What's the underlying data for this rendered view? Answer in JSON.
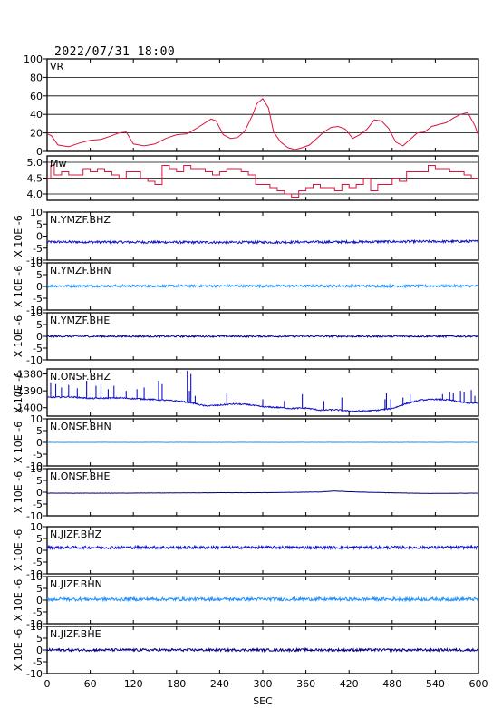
{
  "header": {
    "title": "2022/07/31 18:00"
  },
  "xaxis": {
    "label": "SEC",
    "ticks": [
      0,
      60,
      120,
      180,
      240,
      300,
      360,
      420,
      480,
      540,
      600
    ],
    "range": [
      0,
      600
    ]
  },
  "colors": {
    "vr_mw": "#dc143c",
    "vertical": "#1010c8",
    "north": "#1e90ff",
    "east": "#000080",
    "frame": "#000000"
  },
  "chart_data": [
    {
      "type": "line",
      "panel": "vr",
      "title": "VR",
      "ylim": [
        0,
        100
      ],
      "yticks": [
        0,
        20,
        40,
        60,
        80,
        100
      ],
      "grid": true,
      "series": [
        {
          "x": [
            0,
            6,
            15,
            30,
            45,
            60,
            75,
            90,
            100,
            110,
            120,
            135,
            150,
            165,
            180,
            195,
            210,
            220,
            228,
            235,
            245,
            255,
            265,
            275,
            285,
            292,
            300,
            308,
            315,
            325,
            335,
            345,
            355,
            365,
            375,
            385,
            395,
            405,
            415,
            425,
            435,
            445,
            455,
            465,
            475,
            485,
            495,
            505,
            515,
            525,
            535,
            545,
            555,
            565,
            575,
            585,
            595,
            600
          ],
          "values": [
            19,
            17,
            7,
            5,
            9,
            12,
            13,
            17,
            20,
            21,
            8,
            6,
            8,
            14,
            18,
            19,
            26,
            31,
            35,
            33,
            18,
            14,
            15,
            22,
            38,
            52,
            57,
            47,
            21,
            10,
            4,
            2,
            4,
            7,
            14,
            21,
            26,
            27,
            24,
            14,
            18,
            24,
            34,
            33,
            25,
            10,
            6,
            13,
            20,
            21,
            27,
            29,
            31,
            36,
            40,
            42,
            28,
            17
          ]
        }
      ]
    },
    {
      "type": "line",
      "panel": "mw",
      "title": "Mw",
      "ylim": [
        3.8,
        5.2
      ],
      "yticks": [
        4.0,
        4.5,
        5.0
      ],
      "ytick_labels": [
        "4.0",
        "4.5",
        "5.0"
      ],
      "grid": true,
      "series": [
        {
          "x": [
            0,
            5,
            10,
            20,
            30,
            40,
            50,
            60,
            70,
            80,
            90,
            100,
            110,
            120,
            130,
            140,
            150,
            160,
            170,
            180,
            190,
            200,
            210,
            220,
            230,
            240,
            250,
            260,
            270,
            280,
            290,
            300,
            310,
            320,
            330,
            340,
            350,
            360,
            370,
            380,
            390,
            400,
            410,
            420,
            430,
            440,
            450,
            460,
            470,
            480,
            490,
            500,
            510,
            520,
            530,
            540,
            550,
            560,
            570,
            580,
            590,
            600
          ],
          "values": [
            4.5,
            4.9,
            4.6,
            4.7,
            4.6,
            4.6,
            4.8,
            4.7,
            4.8,
            4.7,
            4.6,
            4.5,
            4.7,
            4.7,
            4.5,
            4.4,
            4.3,
            4.9,
            4.8,
            4.7,
            4.9,
            4.8,
            4.8,
            4.7,
            4.6,
            4.7,
            4.8,
            4.8,
            4.7,
            4.6,
            4.3,
            4.3,
            4.2,
            4.1,
            4.0,
            3.9,
            4.1,
            4.2,
            4.3,
            4.2,
            4.2,
            4.1,
            4.3,
            4.2,
            4.3,
            4.5,
            4.1,
            4.3,
            4.3,
            4.5,
            4.4,
            4.7,
            4.7,
            4.7,
            4.9,
            4.8,
            4.8,
            4.7,
            4.7,
            4.6,
            4.5,
            4.5
          ]
        }
      ]
    },
    {
      "type": "line",
      "panel": "wave",
      "title": "N.YMZF.BHZ",
      "ylim": [
        -10,
        10
      ],
      "yticks": [
        -10,
        -5,
        0,
        5,
        10
      ],
      "ylabel": "X 10E -6",
      "component": "vertical",
      "series": [
        {
          "x": [
            0,
            120,
            240,
            360,
            480,
            600
          ],
          "values": [
            -2.4,
            -2.5,
            -2.6,
            -2.5,
            -2.3,
            -2.2
          ],
          "noise": 0.5
        }
      ]
    },
    {
      "type": "line",
      "panel": "wave",
      "title": "N.YMZF.BHN",
      "ylim": [
        -10,
        10
      ],
      "yticks": [
        -10,
        -5,
        0,
        5,
        10
      ],
      "ylabel": "X 10E -6",
      "component": "north",
      "series": [
        {
          "x": [
            0,
            600
          ],
          "values": [
            0.2,
            0.2
          ],
          "noise": 0.5
        }
      ]
    },
    {
      "type": "line",
      "panel": "wave",
      "title": "N.YMZF.BHE",
      "ylim": [
        -10,
        10
      ],
      "yticks": [
        -10,
        -5,
        0,
        5,
        10
      ],
      "ylabel": "X 10E -6",
      "component": "east",
      "series": [
        {
          "x": [
            0,
            600
          ],
          "values": [
            0.0,
            0.0
          ],
          "noise": 0.35
        }
      ]
    },
    {
      "type": "line",
      "panel": "wave",
      "title": "N.ONSF.BHZ",
      "ylim": [
        -1405,
        -1377
      ],
      "yticks": [
        -1400,
        -1390,
        -1380
      ],
      "ylabel": "X 10E -6",
      "component": "vertical",
      "series": [
        {
          "x": [
            0,
            30,
            60,
            100,
            140,
            180,
            200,
            220,
            240,
            260,
            280,
            300,
            320,
            340,
            360,
            380,
            400,
            420,
            440,
            460,
            480,
            500,
            520,
            540,
            560,
            580,
            600
          ],
          "values": [
            -1394,
            -1393.5,
            -1394.5,
            -1394.2,
            -1395,
            -1396,
            -1397,
            -1399,
            -1398.5,
            -1397.8,
            -1398.2,
            -1399.5,
            -1399.8,
            -1400.5,
            -1400.2,
            -1401.5,
            -1401.2,
            -1402,
            -1402,
            -1401.5,
            -1400.5,
            -1397.5,
            -1395.5,
            -1395,
            -1395.5,
            -1397,
            -1397.5
          ],
          "noise": 0.4,
          "spikes": [
            [
              5,
              -1385
            ],
            [
              12,
              -1386
            ],
            [
              20,
              -1388
            ],
            [
              30,
              -1386.5
            ],
            [
              42,
              -1388.5
            ],
            [
              55,
              -1384
            ],
            [
              68,
              -1387
            ],
            [
              75,
              -1386
            ],
            [
              85,
              -1389
            ],
            [
              93,
              -1387
            ],
            [
              110,
              -1390
            ],
            [
              125,
              -1389
            ],
            [
              135,
              -1388
            ],
            [
              155,
              -1384
            ],
            [
              160,
              -1386
            ],
            [
              195,
              -1378
            ],
            [
              198,
              -1390
            ],
            [
              200,
              -1380
            ],
            [
              206,
              -1393
            ],
            [
              250,
              -1391
            ],
            [
              300,
              -1395
            ],
            [
              330,
              -1396
            ],
            [
              355,
              -1392
            ],
            [
              385,
              -1396
            ],
            [
              410,
              -1394
            ],
            [
              470,
              -1395
            ],
            [
              472,
              -1391.5
            ],
            [
              478,
              -1395
            ],
            [
              495,
              -1394
            ],
            [
              505,
              -1392
            ],
            [
              550,
              -1392
            ],
            [
              560,
              -1390.5
            ],
            [
              565,
              -1391
            ],
            [
              575,
              -1390
            ],
            [
              580,
              -1390.5
            ],
            [
              590,
              -1389.5
            ],
            [
              595,
              -1393
            ]
          ]
        }
      ]
    },
    {
      "type": "line",
      "panel": "wave",
      "title": "N.ONSF.BHN",
      "ylim": [
        -10,
        10
      ],
      "yticks": [
        -10,
        -5,
        0,
        5,
        10
      ],
      "ylabel": "X 10E -6",
      "component": "north",
      "series": [
        {
          "x": [
            0,
            600
          ],
          "values": [
            0.0,
            0.0
          ],
          "noise": 0.05
        }
      ]
    },
    {
      "type": "line",
      "panel": "wave",
      "title": "N.ONSF.BHE",
      "ylim": [
        -10,
        10
      ],
      "yticks": [
        -10,
        -5,
        0,
        5,
        10
      ],
      "ylabel": "X 10E -6",
      "component": "east",
      "series": [
        {
          "x": [
            0,
            100,
            180,
            240,
            300,
            380,
            400,
            420,
            470,
            530,
            600
          ],
          "values": [
            -0.4,
            -0.4,
            -0.3,
            -0.2,
            -0.2,
            0.1,
            0.5,
            0.2,
            -0.2,
            -0.5,
            -0.4
          ],
          "noise": 0.05
        }
      ]
    },
    {
      "type": "line",
      "panel": "wave",
      "title": "N.JIZF.BHZ",
      "ylim": [
        -10,
        10
      ],
      "yticks": [
        -10,
        -5,
        0,
        5,
        10
      ],
      "ylabel": "X 10E -6",
      "component": "vertical",
      "series": [
        {
          "x": [
            0,
            600
          ],
          "values": [
            1.2,
            1.2
          ],
          "noise": 0.6
        }
      ]
    },
    {
      "type": "line",
      "panel": "wave",
      "title": "N.JIZF.BHN",
      "ylim": [
        -10,
        10
      ],
      "yticks": [
        -10,
        -5,
        0,
        5,
        10
      ],
      "ylabel": "X 10E -6",
      "component": "north",
      "series": [
        {
          "x": [
            0,
            600
          ],
          "values": [
            0.4,
            0.4
          ],
          "noise": 0.7
        }
      ]
    },
    {
      "type": "line",
      "panel": "wave",
      "title": "N.JIZF.BHE",
      "ylim": [
        -10,
        10
      ],
      "yticks": [
        -10,
        -5,
        0,
        5,
        10
      ],
      "ylabel": "X 10E -6",
      "component": "east",
      "series": [
        {
          "x": [
            0,
            600
          ],
          "values": [
            0.0,
            0.0
          ],
          "noise": 0.55
        }
      ]
    }
  ]
}
